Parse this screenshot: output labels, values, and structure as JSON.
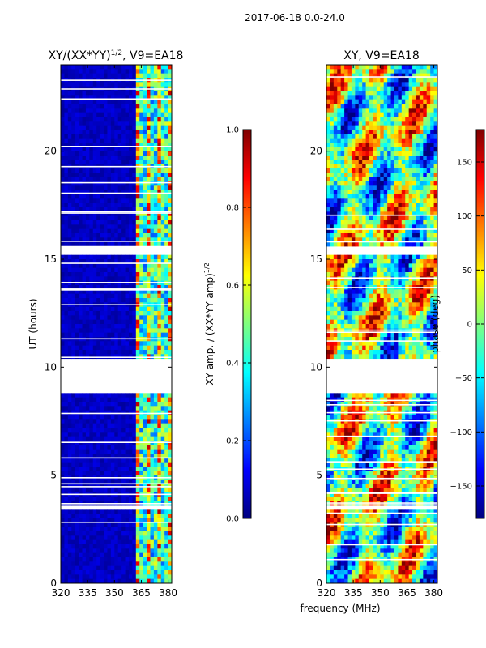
{
  "suptitle": "2017-06-18 0.0-24.0",
  "common_xlabel": "frequency (MHz)",
  "colors": {
    "jet": [
      "#00007f",
      "#0000ff",
      "#007fff",
      "#00ffff",
      "#7fff7f",
      "#ffff00",
      "#ff7f00",
      "#ff0000",
      "#7f0000"
    ],
    "gap": "#ffffff",
    "axis": "#000000"
  },
  "chart_data": [
    {
      "type": "heatmap",
      "panel": "left",
      "title": "XY/(XX*YY)",
      "title_exponent": "1/2",
      "title_suffix": ", V9=EA18",
      "xlabel": "frequency (MHz)",
      "ylabel": "UT (hours)",
      "xlim": [
        320,
        382
      ],
      "ylim": [
        0,
        24
      ],
      "xticks": [
        "320",
        "335",
        "350",
        "365",
        "380"
      ],
      "xtick_values": [
        320,
        335,
        350,
        365,
        380
      ],
      "yticks": [
        "0",
        "5",
        "10",
        "15",
        "20"
      ],
      "ytick_values": [
        0,
        5,
        10,
        15,
        20
      ],
      "data_gaps_hours": [
        [
          8.9,
          10.4
        ],
        [
          3.4,
          3.6
        ],
        [
          15.3,
          15.5
        ]
      ],
      "colorbar": {
        "label": "XY amp. / (XX*YY amp)",
        "label_exponent": "1/2",
        "range": [
          0.0,
          1.0
        ],
        "ticks": [
          "0.0",
          "0.2",
          "0.4",
          "0.6",
          "0.8",
          "1.0"
        ],
        "tick_values": [
          0.0,
          0.2,
          0.4,
          0.6,
          0.8,
          1.0
        ]
      }
    },
    {
      "type": "heatmap",
      "panel": "right",
      "title": "XY, V9=EA18",
      "xlabel": "frequency (MHz)",
      "ylabel": "",
      "xlim": [
        320,
        382
      ],
      "ylim": [
        0,
        24
      ],
      "xticks": [
        "320",
        "335",
        "350",
        "365",
        "380"
      ],
      "xtick_values": [
        320,
        335,
        350,
        365,
        380
      ],
      "yticks": [
        "0",
        "5",
        "10",
        "15",
        "20"
      ],
      "ytick_values": [
        0,
        5,
        10,
        15,
        20
      ],
      "data_gaps_hours": [
        [
          8.9,
          10.4
        ],
        [
          3.4,
          3.6
        ],
        [
          15.3,
          15.5
        ]
      ],
      "colorbar": {
        "label": "phase (deg)",
        "range": [
          -180,
          180
        ],
        "ticks": [
          "−150",
          "−100",
          "−50",
          "0",
          "50",
          "100",
          "150"
        ],
        "tick_values": [
          -150,
          -100,
          -50,
          0,
          50,
          100,
          150
        ]
      }
    }
  ]
}
